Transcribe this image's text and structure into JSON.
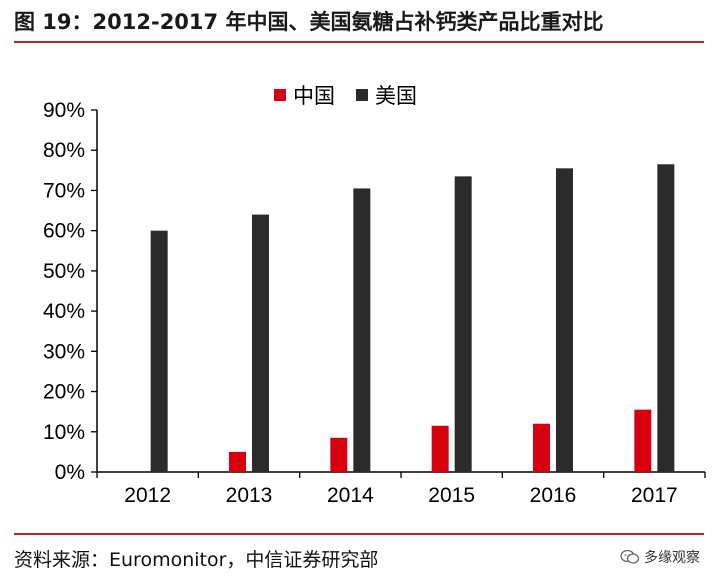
{
  "title": "图 19：2012-2017 年中国、美国氨糖占补钙类产品比重对比",
  "source": "资料来源：Euromonitor，中信证券研究部",
  "watermark": "多缘观察",
  "colors": {
    "china": "#d6000f",
    "usa": "#2b2b2b",
    "rule": "#b3262b"
  },
  "chart_data": {
    "type": "bar",
    "categories": [
      "2012",
      "2013",
      "2014",
      "2015",
      "2016",
      "2017"
    ],
    "series": [
      {
        "name": "中国",
        "values": [
          0,
          5,
          8.5,
          11.5,
          12,
          15.5
        ]
      },
      {
        "name": "美国",
        "values": [
          60,
          64,
          70.5,
          73.5,
          75.5,
          76.5
        ]
      }
    ],
    "ylim": [
      0,
      90
    ],
    "yticks": [
      "0%",
      "10%",
      "20%",
      "30%",
      "40%",
      "50%",
      "60%",
      "70%",
      "80%",
      "90%"
    ],
    "legend_position": "top-center",
    "grid": false
  }
}
